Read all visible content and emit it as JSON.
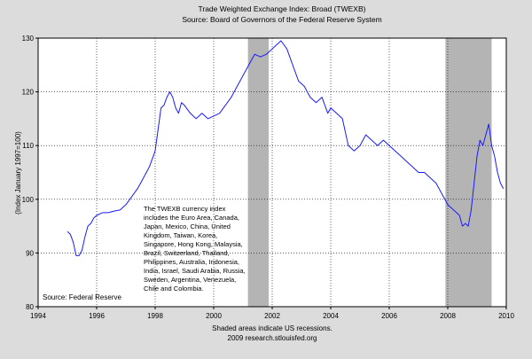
{
  "chart_data": {
    "type": "line",
    "title": "Trade Weighted Exchange Index: Broad (TWEXB)",
    "subtitle": "Source: Board of Governors of the Federal Reserve System",
    "ylabel": "(Index January 1997=100)",
    "xlabel": "",
    "xlim": [
      1994,
      2010
    ],
    "ylim": [
      80,
      130
    ],
    "x_ticks": [
      "1994",
      "1996",
      "1998",
      "2000",
      "2002",
      "2004",
      "2006",
      "2008",
      "2010"
    ],
    "y_ticks": [
      "80",
      "90",
      "100",
      "110",
      "120",
      "130"
    ],
    "grid": true,
    "recessions": [
      [
        2001.17,
        2001.88
      ],
      [
        2007.92,
        2009.5
      ]
    ],
    "series": [
      {
        "color": "#1a1aff",
        "x": [
          1995.0,
          1995.1,
          1995.2,
          1995.3,
          1995.4,
          1995.5,
          1995.6,
          1995.7,
          1995.8,
          1995.9,
          1996.0,
          1996.2,
          1996.4,
          1996.6,
          1996.8,
          1997.0,
          1997.2,
          1997.4,
          1997.6,
          1997.8,
          1998.0,
          1998.1,
          1998.2,
          1998.3,
          1998.4,
          1998.5,
          1998.6,
          1998.7,
          1998.8,
          1998.9,
          1999.0,
          1999.2,
          1999.4,
          1999.6,
          1999.8,
          2000.0,
          2000.2,
          2000.4,
          2000.6,
          2000.8,
          2001.0,
          2001.2,
          2001.4,
          2001.6,
          2001.8,
          2002.0,
          2002.1,
          2002.3,
          2002.5,
          2002.7,
          2002.9,
          2003.1,
          2003.3,
          2003.5,
          2003.7,
          2003.9,
          2004.0,
          2004.2,
          2004.4,
          2004.6,
          2004.8,
          2005.0,
          2005.2,
          2005.4,
          2005.6,
          2005.8,
          2006.0,
          2006.2,
          2006.4,
          2006.6,
          2006.8,
          2007.0,
          2007.2,
          2007.4,
          2007.6,
          2007.8,
          2008.0,
          2008.2,
          2008.4,
          2008.5,
          2008.6,
          2008.7,
          2008.8,
          2008.9,
          2009.0,
          2009.1,
          2009.2,
          2009.3,
          2009.4,
          2009.5,
          2009.6,
          2009.7,
          2009.8,
          2009.9
        ],
        "values": [
          94,
          93.5,
          92,
          89.5,
          89.5,
          90.5,
          93,
          95,
          95.5,
          96.5,
          97,
          97.5,
          97.5,
          97.8,
          98,
          99,
          100.5,
          102,
          104,
          106,
          109,
          113,
          117,
          117.5,
          119,
          120,
          119,
          117,
          116,
          118,
          117.5,
          116,
          115,
          116,
          115,
          115.5,
          116,
          117.5,
          119,
          121,
          123,
          125,
          127,
          126.5,
          127,
          128,
          128.5,
          129.5,
          128,
          125,
          122,
          121,
          119,
          118,
          119,
          116,
          117,
          116,
          115,
          110,
          109,
          110,
          112,
          111,
          110,
          111,
          110,
          109,
          108,
          107,
          106,
          105,
          105,
          104,
          103,
          101,
          99,
          98,
          97,
          95,
          95.5,
          95,
          98,
          103,
          108,
          111,
          110,
          112,
          114,
          110,
          108,
          105,
          103,
          102
        ]
      }
    ],
    "annotations": [
      "The TWEXB currency index",
      "includes the Euro Area, Canada,",
      "Japan, Mexico, China, United",
      "Kingdom, Taiwan, Korea,",
      "Singapore, Hong Kong, Malaysia,",
      "Brazil, Switzerland, Thailand,",
      "Philippines, Australia, Indonesia,",
      "India, Israel, Saudi Arabia, Russia,",
      "Sweden, Argentina, Venezuela,",
      "Chile and Colombia."
    ],
    "source_note": "Source: Federal Reserve",
    "footer": [
      "Shaded areas indicate US recessions.",
      "2009 research.stlouisfed.org"
    ]
  }
}
